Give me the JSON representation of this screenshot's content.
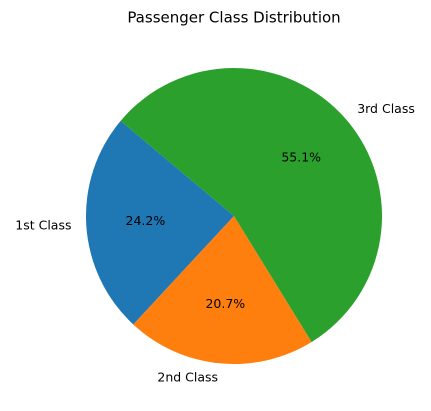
{
  "chart_data": {
    "type": "pie",
    "title": "Passenger Class Distribution",
    "categories": [
      "1st Class",
      "2nd Class",
      "3rd Class"
    ],
    "values": [
      24.2,
      20.7,
      55.1
    ],
    "value_labels": [
      "24.2%",
      "20.7%",
      "55.1%"
    ],
    "colors": [
      "#1f77b4",
      "#ff7f0e",
      "#2ca02c"
    ],
    "start_angle": 140
  }
}
